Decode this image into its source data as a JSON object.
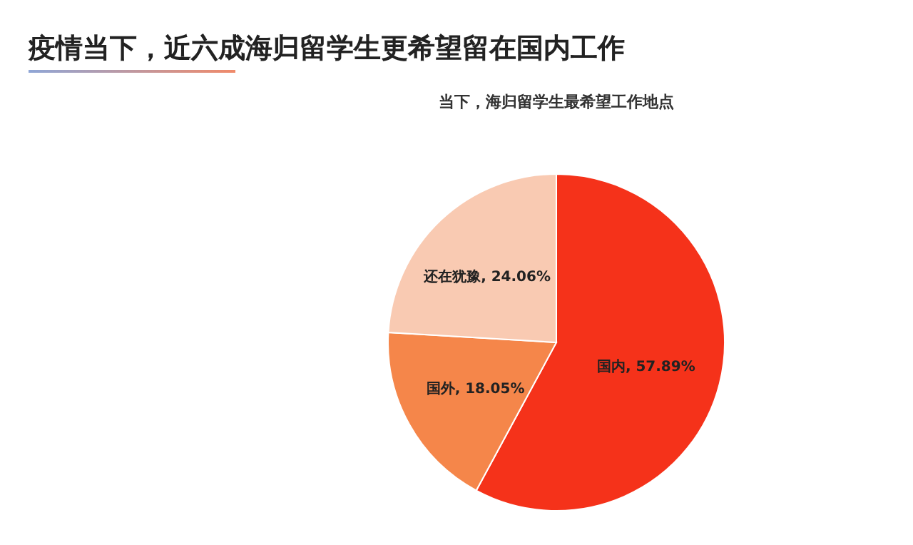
{
  "chart_data": {
    "type": "pie",
    "title": "疫情当下，近六成海归留学生更希望留在国内工作",
    "subtitle": "当下，海归留学生最希望工作地点",
    "categories": [
      "国内",
      "国外",
      "还在犹豫"
    ],
    "values": [
      57.89,
      18.05,
      24.06
    ],
    "colors": [
      "#f5321a",
      "#f5864a",
      "#f9cab2"
    ],
    "value_labels": [
      ", 57.89%",
      ", 18.05%",
      ", 24.06%"
    ],
    "legend": false
  }
}
